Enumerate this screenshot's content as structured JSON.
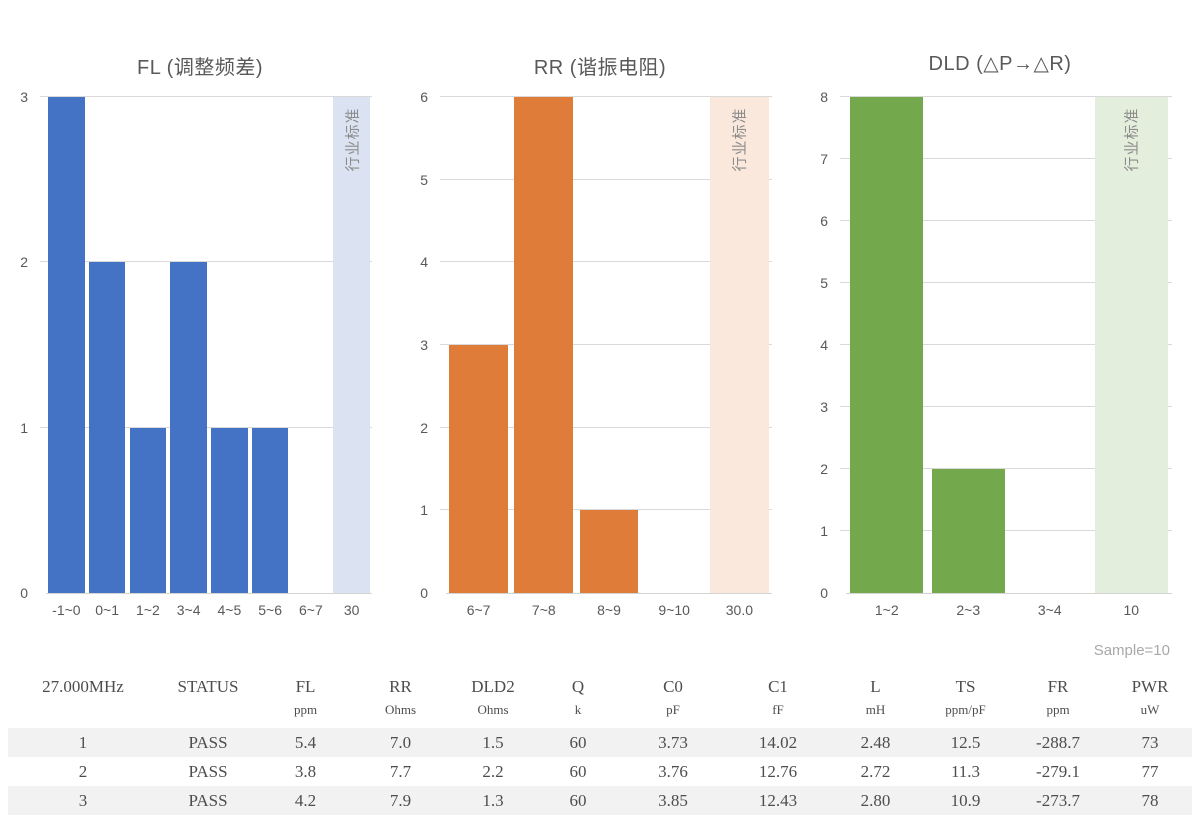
{
  "sample_note": "Sample=10",
  "chart_data": [
    {
      "type": "bar",
      "title": "FL (调整频差)",
      "categories": [
        "-1~0",
        "0~1",
        "1~2",
        "3~4",
        "4~5",
        "5~6",
        "6~7",
        "30"
      ],
      "values": [
        3,
        2,
        1,
        2,
        1,
        1,
        0,
        3
      ],
      "band_category": "30",
      "band_value": 3,
      "band_label": "行业标准",
      "ylim": [
        0,
        3
      ],
      "yticks": [
        0,
        1,
        2,
        3
      ],
      "xlabel": "",
      "ylabel": "",
      "grid": true,
      "legend": "none",
      "bar_color": "#4472C4",
      "band_color": "#DBE3F2"
    },
    {
      "type": "bar",
      "title": "RR (谐振电阻)",
      "categories": [
        "6~7",
        "7~8",
        "8~9",
        "9~10",
        "30.0"
      ],
      "values": [
        3,
        6,
        1,
        0,
        6
      ],
      "band_category": "30.0",
      "band_value": 6,
      "band_label": "行业标准",
      "ylim": [
        0,
        6
      ],
      "yticks": [
        0,
        1,
        2,
        3,
        4,
        5,
        6
      ],
      "xlabel": "",
      "ylabel": "",
      "grid": true,
      "legend": "none",
      "bar_color": "#E07C39",
      "band_color": "#FAE8DC"
    },
    {
      "type": "bar",
      "title": "DLD (△P→△R)",
      "categories": [
        "1~2",
        "2~3",
        "3~4",
        "10"
      ],
      "values": [
        8,
        2,
        0,
        8
      ],
      "band_category": "10",
      "band_value": 8,
      "band_label": "行业标准",
      "ylim": [
        0,
        8
      ],
      "yticks": [
        0,
        1,
        2,
        3,
        4,
        5,
        6,
        7,
        8
      ],
      "xlabel": "",
      "ylabel": "",
      "grid": true,
      "legend": "none",
      "bar_color": "#74A84D",
      "band_color": "#E4EEDC"
    }
  ],
  "table": {
    "columns": [
      {
        "label": "27.000MHz",
        "unit": ""
      },
      {
        "label": "STATUS",
        "unit": ""
      },
      {
        "label": "FL",
        "unit": "ppm"
      },
      {
        "label": "RR",
        "unit": "Ohms"
      },
      {
        "label": "DLD2",
        "unit": "Ohms"
      },
      {
        "label": "Q",
        "unit": "k"
      },
      {
        "label": "C0",
        "unit": "pF"
      },
      {
        "label": "C1",
        "unit": "fF"
      },
      {
        "label": "L",
        "unit": "mH"
      },
      {
        "label": "TS",
        "unit": "ppm/pF"
      },
      {
        "label": "FR",
        "unit": "ppm"
      },
      {
        "label": "PWR",
        "unit": "uW"
      }
    ],
    "rows": [
      [
        "1",
        "PASS",
        "5.4",
        "7.0",
        "1.5",
        "60",
        "3.73",
        "14.02",
        "2.48",
        "12.5",
        "-288.7",
        "73"
      ],
      [
        "2",
        "PASS",
        "3.8",
        "7.7",
        "2.2",
        "60",
        "3.76",
        "12.76",
        "2.72",
        "11.3",
        "-279.1",
        "77"
      ],
      [
        "3",
        "PASS",
        "4.2",
        "7.9",
        "1.3",
        "60",
        "3.85",
        "12.43",
        "2.80",
        "10.9",
        "-273.7",
        "78"
      ]
    ]
  }
}
